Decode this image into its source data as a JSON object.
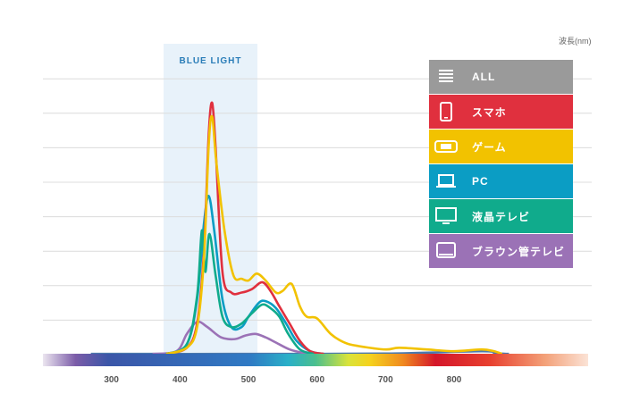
{
  "unit_label": "波長(nm)",
  "blue_light_label": "BLUE LIGHT",
  "legend": [
    {
      "label": "ALL",
      "color": "#9a9a9a",
      "icon": "all-list-icon"
    },
    {
      "label": "スマホ",
      "color": "#e0303e",
      "icon": "smartphone-icon"
    },
    {
      "label": "ゲーム",
      "color": "#f2c200",
      "icon": "game-console-icon"
    },
    {
      "label": "PC",
      "color": "#0b9dc4",
      "icon": "laptop-icon"
    },
    {
      "label": "液晶テレビ",
      "color": "#10ab8c",
      "icon": "lcd-tv-icon"
    },
    {
      "label": "ブラウン管テレビ",
      "color": "#9b72b6",
      "icon": "crt-tv-icon"
    }
  ],
  "chart_data": {
    "type": "line",
    "xlabel": "波長(nm)",
    "xlim": [
      200,
      900
    ],
    "ylim": [
      0,
      8
    ],
    "x_ticks": [
      300,
      400,
      500,
      600,
      700,
      800
    ],
    "gridlines": [
      1,
      2,
      3,
      4,
      5,
      6,
      7,
      8
    ],
    "blue_light_range": [
      370,
      480
    ],
    "series": [
      {
        "name": "スマホ",
        "color": "#e0303e",
        "points": [
          [
            380,
            0.02
          ],
          [
            410,
            0.2
          ],
          [
            425,
            0.9
          ],
          [
            435,
            3
          ],
          [
            442,
            6.4
          ],
          [
            447,
            7.3
          ],
          [
            452,
            6
          ],
          [
            462,
            2.4
          ],
          [
            475,
            1.8
          ],
          [
            490,
            1.8
          ],
          [
            505,
            1.9
          ],
          [
            520,
            2.1
          ],
          [
            532,
            1.85
          ],
          [
            545,
            1.4
          ],
          [
            560,
            0.9
          ],
          [
            575,
            0.4
          ],
          [
            590,
            0.1
          ],
          [
            610,
            0.02
          ]
        ]
      },
      {
        "name": "ゲーム",
        "color": "#f2c200",
        "points": [
          [
            380,
            0.02
          ],
          [
            410,
            0.2
          ],
          [
            425,
            0.8
          ],
          [
            435,
            2.8
          ],
          [
            442,
            6.1
          ],
          [
            447,
            6.9
          ],
          [
            453,
            5.6
          ],
          [
            465,
            3.6
          ],
          [
            478,
            2.3
          ],
          [
            490,
            2.2
          ],
          [
            500,
            2.15
          ],
          [
            512,
            2.35
          ],
          [
            525,
            2.15
          ],
          [
            540,
            1.8
          ],
          [
            550,
            1.85
          ],
          [
            563,
            2.05
          ],
          [
            575,
            1.4
          ],
          [
            585,
            1.1
          ],
          [
            600,
            1.05
          ],
          [
            620,
            0.6
          ],
          [
            640,
            0.35
          ],
          [
            660,
            0.25
          ],
          [
            700,
            0.15
          ],
          [
            720,
            0.2
          ],
          [
            760,
            0.15
          ],
          [
            800,
            0.1
          ],
          [
            840,
            0.15
          ],
          [
            858,
            0.1
          ],
          [
            870,
            0.02
          ]
        ]
      },
      {
        "name": "PC",
        "color": "#0b9dc4",
        "points": [
          [
            380,
            0.02
          ],
          [
            410,
            0.3
          ],
          [
            425,
            1.6
          ],
          [
            435,
            3.8
          ],
          [
            442,
            4.6
          ],
          [
            450,
            3.6
          ],
          [
            462,
            1.6
          ],
          [
            475,
            0.8
          ],
          [
            490,
            0.8
          ],
          [
            500,
            1.1
          ],
          [
            515,
            1.5
          ],
          [
            525,
            1.55
          ],
          [
            540,
            1.35
          ],
          [
            555,
            0.9
          ],
          [
            570,
            0.4
          ],
          [
            590,
            0.1
          ],
          [
            610,
            0.02
          ]
        ]
      },
      {
        "name": "液晶テレビ",
        "color": "#10ab8c",
        "points": [
          [
            380,
            0.02
          ],
          [
            410,
            0.3
          ],
          [
            425,
            1.7
          ],
          [
            432,
            3.6
          ],
          [
            437,
            2.4
          ],
          [
            443,
            3.5
          ],
          [
            452,
            2.3
          ],
          [
            462,
            1.1
          ],
          [
            475,
            0.8
          ],
          [
            490,
            0.9
          ],
          [
            505,
            1.2
          ],
          [
            520,
            1.45
          ],
          [
            532,
            1.35
          ],
          [
            545,
            1.1
          ],
          [
            558,
            0.6
          ],
          [
            575,
            0.15
          ],
          [
            595,
            0.02
          ]
        ]
      },
      {
        "name": "ブラウン管テレビ",
        "color": "#9b72b6",
        "points": [
          [
            360,
            0.02
          ],
          [
            395,
            0.1
          ],
          [
            410,
            0.6
          ],
          [
            425,
            0.95
          ],
          [
            440,
            0.8
          ],
          [
            460,
            0.5
          ],
          [
            480,
            0.45
          ],
          [
            495,
            0.55
          ],
          [
            510,
            0.6
          ],
          [
            525,
            0.5
          ],
          [
            540,
            0.35
          ],
          [
            560,
            0.15
          ],
          [
            580,
            0.05
          ],
          [
            595,
            0.02
          ]
        ]
      },
      {
        "name": "ALL",
        "color": "#4b79ad",
        "points": [
          [
            270,
            0.02
          ],
          [
            380,
            0.02
          ],
          [
            500,
            0.02
          ],
          [
            700,
            0.03
          ],
          [
            840,
            0.1
          ],
          [
            860,
            0.04
          ],
          [
            880,
            0.02
          ]
        ]
      }
    ]
  }
}
